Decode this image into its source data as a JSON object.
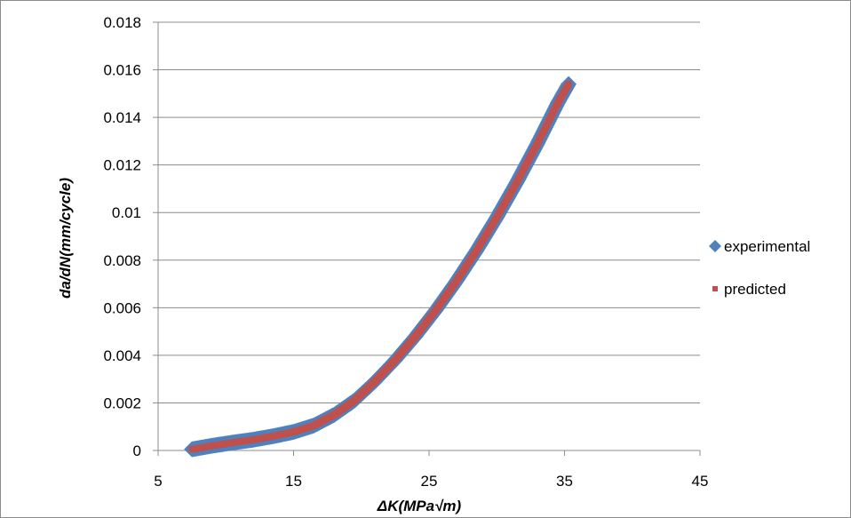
{
  "chart_data": {
    "type": "scatter",
    "xlabel": "ΔK(MPa√m)",
    "ylabel": "da/dN(mm/cycle)",
    "xlim": [
      5,
      45
    ],
    "ylim": [
      0,
      0.018
    ],
    "x_ticks": [
      "5",
      "15",
      "25",
      "35",
      "45"
    ],
    "y_ticks": [
      "0",
      "0.002",
      "0.004",
      "0.006",
      "0.008",
      "0.01",
      "0.012",
      "0.014",
      "0.016",
      "0.018"
    ],
    "grid": "horizontal",
    "legend_position": "right",
    "series": [
      {
        "name": "experimental",
        "marker": "diamond",
        "color": "#4f81bd",
        "x": [
          7.5,
          9,
          10.5,
          12,
          13.5,
          15,
          16.5,
          18,
          19.5,
          21,
          22.5,
          24,
          25.5,
          27,
          28.5,
          30,
          31.5,
          33,
          34.5,
          35.3
        ],
        "y": [
          5e-05,
          0.0002,
          0.00033,
          0.00045,
          0.0006,
          0.00078,
          0.00105,
          0.0015,
          0.0021,
          0.0029,
          0.0038,
          0.0048,
          0.0059,
          0.0071,
          0.0084,
          0.0098,
          0.0113,
          0.0129,
          0.0146,
          0.0154
        ]
      },
      {
        "name": "predicted",
        "marker": "square",
        "color": "#c0504d",
        "x": [
          7.5,
          9,
          10.5,
          12,
          13.5,
          15,
          16.5,
          18,
          19.5,
          21,
          22.5,
          24,
          25.5,
          27,
          28.5,
          30,
          31.5,
          33,
          34.5,
          35.3
        ],
        "y": [
          5e-05,
          0.0002,
          0.00033,
          0.00045,
          0.0006,
          0.00078,
          0.00105,
          0.0015,
          0.0021,
          0.0029,
          0.0038,
          0.0048,
          0.0059,
          0.0071,
          0.0084,
          0.0098,
          0.0113,
          0.0129,
          0.0146,
          0.0154
        ]
      }
    ]
  }
}
